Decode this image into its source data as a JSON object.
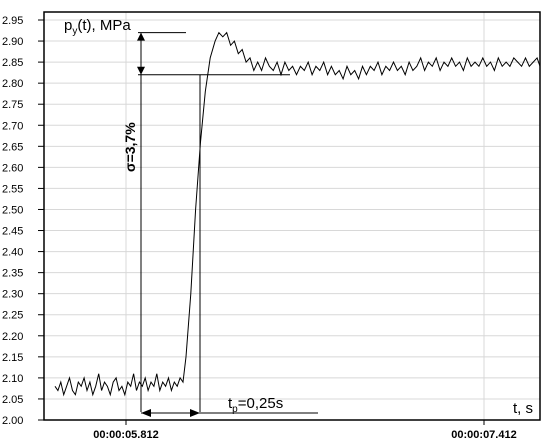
{
  "chart_data": {
    "type": "line",
    "ylabel_main": "p",
    "ylabel_sub": "y",
    "ylabel_rest": "(t), MPa",
    "xlabel": "t, s",
    "ylim": [
      2.0,
      2.95
    ],
    "yticks": [
      "2.95",
      "2.90",
      "2.85",
      "2.80",
      "2.75",
      "2.70",
      "2.65",
      "2.60",
      "2.55",
      "2.50",
      "2.45",
      "2.40",
      "2.35",
      "2.30",
      "2.25",
      "2.20",
      "2.15",
      "2.10",
      "2.05",
      "2.00"
    ],
    "xticks": [
      "00:00:05.812",
      "00:00:07.412"
    ],
    "grid": true,
    "series": [
      {
        "points": [
          [
            0.0,
            2.08
          ],
          [
            0.006,
            2.07
          ],
          [
            0.012,
            2.09
          ],
          [
            0.018,
            2.06
          ],
          [
            0.024,
            2.08
          ],
          [
            0.03,
            2.1
          ],
          [
            0.036,
            2.07
          ],
          [
            0.042,
            2.06
          ],
          [
            0.048,
            2.09
          ],
          [
            0.054,
            2.08
          ],
          [
            0.06,
            2.1
          ],
          [
            0.066,
            2.07
          ],
          [
            0.072,
            2.09
          ],
          [
            0.078,
            2.06
          ],
          [
            0.084,
            2.08
          ],
          [
            0.09,
            2.11
          ],
          [
            0.096,
            2.07
          ],
          [
            0.102,
            2.09
          ],
          [
            0.108,
            2.08
          ],
          [
            0.114,
            2.06
          ],
          [
            0.12,
            2.09
          ],
          [
            0.126,
            2.1
          ],
          [
            0.132,
            2.07
          ],
          [
            0.138,
            2.08
          ],
          [
            0.144,
            2.06
          ],
          [
            0.15,
            2.09
          ],
          [
            0.156,
            2.08
          ],
          [
            0.162,
            2.11
          ],
          [
            0.168,
            2.07
          ],
          [
            0.174,
            2.09
          ],
          [
            0.18,
            2.08
          ],
          [
            0.186,
            2.1
          ],
          [
            0.192,
            2.07
          ],
          [
            0.198,
            2.09
          ],
          [
            0.204,
            2.08
          ],
          [
            0.21,
            2.11
          ],
          [
            0.216,
            2.07
          ],
          [
            0.222,
            2.09
          ],
          [
            0.228,
            2.08
          ],
          [
            0.234,
            2.1
          ],
          [
            0.24,
            2.07
          ],
          [
            0.246,
            2.09
          ],
          [
            0.252,
            2.08
          ],
          [
            0.258,
            2.1
          ],
          [
            0.264,
            2.09
          ],
          [
            0.27,
            2.15
          ],
          [
            0.28,
            2.3
          ],
          [
            0.29,
            2.5
          ],
          [
            0.3,
            2.66
          ],
          [
            0.31,
            2.78
          ],
          [
            0.32,
            2.86
          ],
          [
            0.33,
            2.9
          ],
          [
            0.338,
            2.92
          ],
          [
            0.346,
            2.91
          ],
          [
            0.354,
            2.92
          ],
          [
            0.362,
            2.89
          ],
          [
            0.37,
            2.9
          ],
          [
            0.378,
            2.87
          ],
          [
            0.386,
            2.88
          ],
          [
            0.394,
            2.85
          ],
          [
            0.402,
            2.86
          ],
          [
            0.41,
            2.83
          ],
          [
            0.418,
            2.85
          ],
          [
            0.426,
            2.83
          ],
          [
            0.434,
            2.86
          ],
          [
            0.442,
            2.84
          ],
          [
            0.45,
            2.83
          ],
          [
            0.458,
            2.85
          ],
          [
            0.466,
            2.82
          ],
          [
            0.474,
            2.85
          ],
          [
            0.482,
            2.83
          ],
          [
            0.49,
            2.84
          ],
          [
            0.498,
            2.82
          ],
          [
            0.506,
            2.84
          ],
          [
            0.514,
            2.83
          ],
          [
            0.522,
            2.85
          ],
          [
            0.53,
            2.82
          ],
          [
            0.538,
            2.84
          ],
          [
            0.546,
            2.83
          ],
          [
            0.554,
            2.85
          ],
          [
            0.562,
            2.82
          ],
          [
            0.57,
            2.84
          ],
          [
            0.578,
            2.82
          ],
          [
            0.586,
            2.83
          ],
          [
            0.594,
            2.81
          ],
          [
            0.602,
            2.84
          ],
          [
            0.61,
            2.82
          ],
          [
            0.618,
            2.83
          ],
          [
            0.626,
            2.81
          ],
          [
            0.634,
            2.84
          ],
          [
            0.642,
            2.82
          ],
          [
            0.65,
            2.84
          ],
          [
            0.658,
            2.83
          ],
          [
            0.666,
            2.85
          ],
          [
            0.674,
            2.82
          ],
          [
            0.682,
            2.84
          ],
          [
            0.69,
            2.83
          ],
          [
            0.698,
            2.85
          ],
          [
            0.706,
            2.83
          ],
          [
            0.714,
            2.84
          ],
          [
            0.722,
            2.82
          ],
          [
            0.73,
            2.85
          ],
          [
            0.738,
            2.83
          ],
          [
            0.746,
            2.84
          ],
          [
            0.754,
            2.86
          ],
          [
            0.762,
            2.83
          ],
          [
            0.77,
            2.85
          ],
          [
            0.778,
            2.84
          ],
          [
            0.786,
            2.86
          ],
          [
            0.794,
            2.83
          ],
          [
            0.802,
            2.85
          ],
          [
            0.81,
            2.84
          ],
          [
            0.818,
            2.86
          ],
          [
            0.826,
            2.84
          ],
          [
            0.834,
            2.85
          ],
          [
            0.842,
            2.83
          ],
          [
            0.85,
            2.86
          ],
          [
            0.858,
            2.84
          ],
          [
            0.866,
            2.85
          ],
          [
            0.874,
            2.84
          ],
          [
            0.882,
            2.86
          ],
          [
            0.89,
            2.84
          ],
          [
            0.898,
            2.85
          ],
          [
            0.906,
            2.83
          ],
          [
            0.914,
            2.86
          ],
          [
            0.922,
            2.84
          ],
          [
            0.93,
            2.85
          ],
          [
            0.938,
            2.84
          ],
          [
            0.946,
            2.86
          ],
          [
            0.954,
            2.85
          ],
          [
            0.962,
            2.84
          ],
          [
            0.97,
            2.86
          ],
          [
            0.978,
            2.84
          ],
          [
            0.986,
            2.85
          ],
          [
            0.994,
            2.86
          ],
          [
            1.0,
            2.84
          ]
        ]
      }
    ],
    "annotations": {
      "overshoot": "σ=3,7%",
      "settling_main": "t",
      "settling_sub": "p",
      "settling_rest": "=0,25s"
    }
  }
}
